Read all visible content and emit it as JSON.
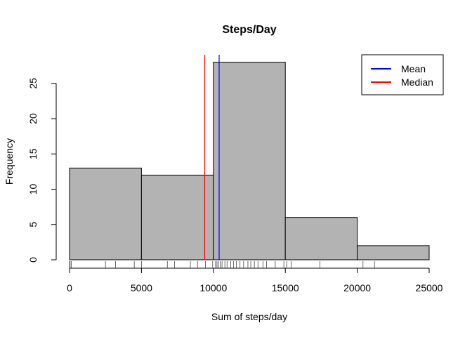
{
  "chart_data": {
    "type": "bar",
    "title": "Steps/Day",
    "xlabel": "Sum of steps/day",
    "ylabel": "Frequency",
    "xlim": [
      0,
      25000
    ],
    "ylim": [
      0,
      28
    ],
    "x_ticks": [
      0,
      5000,
      10000,
      15000,
      20000,
      25000
    ],
    "y_ticks": [
      0,
      5,
      10,
      15,
      20,
      25
    ],
    "bins": [
      {
        "start": 0,
        "end": 5000,
        "count": 13
      },
      {
        "start": 5000,
        "end": 10000,
        "count": 12
      },
      {
        "start": 10000,
        "end": 15000,
        "count": 28
      },
      {
        "start": 15000,
        "end": 20000,
        "count": 6
      },
      {
        "start": 20000,
        "end": 25000,
        "count": 2
      }
    ],
    "bar_color": "#b3b3b3",
    "reference_lines": [
      {
        "name": "Mean",
        "value": 10400,
        "color": "#0000ff"
      },
      {
        "name": "Median",
        "value": 9400,
        "color": "#ff0000"
      }
    ],
    "rug": [
      0,
      40,
      125,
      2500,
      3200,
      4500,
      5000,
      6800,
      7300,
      8400,
      8900,
      9450,
      9950,
      10150,
      10250,
      10350,
      10480,
      10600,
      10800,
      10950,
      11200,
      11400,
      11600,
      11850,
      12100,
      12400,
      12600,
      12850,
      13100,
      13450,
      13700,
      14300,
      14900,
      15100,
      15400,
      17400,
      20400,
      21200
    ],
    "legend": {
      "position": "top-right",
      "entries": [
        "Mean",
        "Median"
      ]
    }
  }
}
